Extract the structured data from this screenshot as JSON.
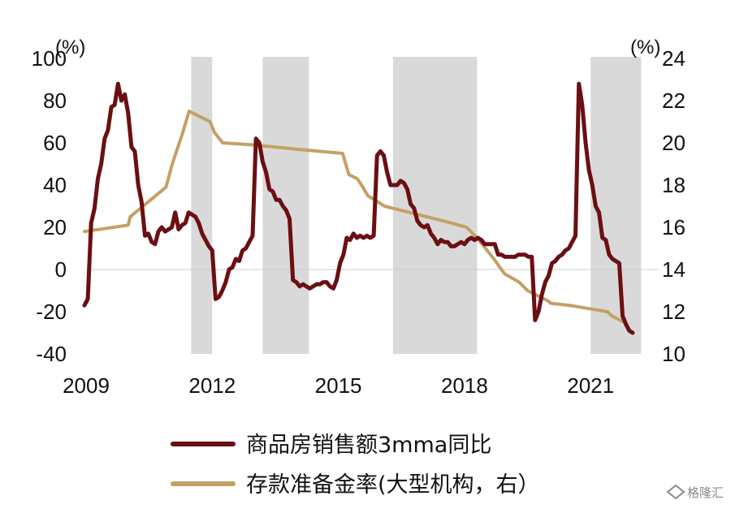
{
  "chart_data": {
    "type": "line",
    "left_axis": {
      "unit": "(%)",
      "ylim": [
        -40,
        100
      ],
      "ticks": [
        -40,
        -20,
        0,
        20,
        40,
        60,
        80,
        100
      ]
    },
    "right_axis": {
      "unit": "(%)",
      "ylim": [
        10,
        24
      ],
      "ticks": [
        10,
        12,
        14,
        16,
        18,
        20,
        22,
        24
      ]
    },
    "x_axis": {
      "ticks": [
        2009,
        2012,
        2015,
        2018,
        2021
      ],
      "xlim": [
        2009.0,
        2022.6
      ]
    },
    "shaded_periods": [
      [
        2011.5,
        2012.0
      ],
      [
        2013.2,
        2014.3
      ],
      [
        2016.3,
        2018.3
      ],
      [
        2021.0,
        2022.2
      ]
    ],
    "series": [
      {
        "name": "商品房销售额3mma同比",
        "axis": "left",
        "color": "#6b0f12",
        "points": [
          [
            2008.96,
            -17
          ],
          [
            2009.04,
            -14
          ],
          [
            2009.12,
            22
          ],
          [
            2009.2,
            29
          ],
          [
            2009.28,
            43
          ],
          [
            2009.36,
            50
          ],
          [
            2009.44,
            62
          ],
          [
            2009.52,
            66
          ],
          [
            2009.6,
            77
          ],
          [
            2009.68,
            78
          ],
          [
            2009.76,
            88
          ],
          [
            2009.84,
            80
          ],
          [
            2009.92,
            83
          ],
          [
            2010.0,
            74
          ],
          [
            2010.08,
            58
          ],
          [
            2010.16,
            56
          ],
          [
            2010.24,
            40
          ],
          [
            2010.32,
            32
          ],
          [
            2010.4,
            16
          ],
          [
            2010.48,
            17
          ],
          [
            2010.56,
            13
          ],
          [
            2010.64,
            12
          ],
          [
            2010.72,
            18
          ],
          [
            2010.8,
            20
          ],
          [
            2010.88,
            18
          ],
          [
            2010.96,
            19
          ],
          [
            2011.04,
            20
          ],
          [
            2011.12,
            27
          ],
          [
            2011.2,
            19
          ],
          [
            2011.28,
            21
          ],
          [
            2011.36,
            22
          ],
          [
            2011.44,
            27
          ],
          [
            2011.52,
            26
          ],
          [
            2011.6,
            25
          ],
          [
            2011.68,
            22
          ],
          [
            2011.76,
            17
          ],
          [
            2011.84,
            14
          ],
          [
            2011.92,
            11
          ],
          [
            2012.0,
            9
          ],
          [
            2012.08,
            -14
          ],
          [
            2012.16,
            -13
          ],
          [
            2012.24,
            -10
          ],
          [
            2012.32,
            -6
          ],
          [
            2012.4,
            0
          ],
          [
            2012.48,
            1
          ],
          [
            2012.56,
            5
          ],
          [
            2012.64,
            4
          ],
          [
            2012.72,
            9
          ],
          [
            2012.8,
            10
          ],
          [
            2012.88,
            13
          ],
          [
            2012.96,
            16
          ],
          [
            2013.04,
            62
          ],
          [
            2013.12,
            60
          ],
          [
            2013.2,
            51
          ],
          [
            2013.28,
            46
          ],
          [
            2013.36,
            38
          ],
          [
            2013.44,
            37
          ],
          [
            2013.52,
            33
          ],
          [
            2013.6,
            33
          ],
          [
            2013.68,
            30
          ],
          [
            2013.76,
            28
          ],
          [
            2013.84,
            24
          ],
          [
            2013.92,
            -5
          ],
          [
            2014.0,
            -6
          ],
          [
            2014.08,
            -8
          ],
          [
            2014.16,
            -7
          ],
          [
            2014.24,
            -8
          ],
          [
            2014.32,
            -9
          ],
          [
            2014.4,
            -8
          ],
          [
            2014.48,
            -7
          ],
          [
            2014.56,
            -7
          ],
          [
            2014.64,
            -6
          ],
          [
            2014.72,
            -6
          ],
          [
            2014.8,
            -8
          ],
          [
            2014.88,
            -9
          ],
          [
            2014.96,
            -5
          ],
          [
            2015.04,
            3
          ],
          [
            2015.12,
            7
          ],
          [
            2015.2,
            15
          ],
          [
            2015.28,
            14
          ],
          [
            2015.36,
            17
          ],
          [
            2015.44,
            15
          ],
          [
            2015.52,
            16
          ],
          [
            2015.6,
            15
          ],
          [
            2015.68,
            16
          ],
          [
            2015.76,
            15
          ],
          [
            2015.84,
            16
          ],
          [
            2015.92,
            54
          ],
          [
            2016.0,
            56
          ],
          [
            2016.08,
            54
          ],
          [
            2016.16,
            46
          ],
          [
            2016.24,
            40
          ],
          [
            2016.32,
            40
          ],
          [
            2016.4,
            40
          ],
          [
            2016.48,
            42
          ],
          [
            2016.56,
            41
          ],
          [
            2016.64,
            38
          ],
          [
            2016.72,
            31
          ],
          [
            2016.8,
            29
          ],
          [
            2016.88,
            23
          ],
          [
            2016.96,
            21
          ],
          [
            2017.04,
            20
          ],
          [
            2017.12,
            21
          ],
          [
            2017.2,
            17
          ],
          [
            2017.28,
            15
          ],
          [
            2017.36,
            12
          ],
          [
            2017.44,
            14
          ],
          [
            2017.52,
            13
          ],
          [
            2017.6,
            13
          ],
          [
            2017.68,
            11
          ],
          [
            2017.76,
            11
          ],
          [
            2017.84,
            12
          ],
          [
            2017.92,
            13
          ],
          [
            2018.0,
            12
          ],
          [
            2018.08,
            14
          ],
          [
            2018.16,
            15
          ],
          [
            2018.24,
            14
          ],
          [
            2018.32,
            15
          ],
          [
            2018.4,
            14
          ],
          [
            2018.48,
            12
          ],
          [
            2018.56,
            12
          ],
          [
            2018.64,
            12
          ],
          [
            2018.72,
            12
          ],
          [
            2018.8,
            7
          ],
          [
            2018.88,
            7
          ],
          [
            2018.96,
            6
          ],
          [
            2019.04,
            6
          ],
          [
            2019.12,
            6
          ],
          [
            2019.2,
            6
          ],
          [
            2019.28,
            7
          ],
          [
            2019.36,
            7
          ],
          [
            2019.44,
            7
          ],
          [
            2019.52,
            6
          ],
          [
            2019.6,
            6
          ],
          [
            2019.68,
            -24
          ],
          [
            2019.76,
            -20
          ],
          [
            2019.84,
            -12
          ],
          [
            2019.92,
            -6
          ],
          [
            2020.0,
            -3
          ],
          [
            2020.08,
            3
          ],
          [
            2020.16,
            4
          ],
          [
            2020.24,
            6
          ],
          [
            2020.32,
            7
          ],
          [
            2020.4,
            9
          ],
          [
            2020.48,
            10
          ],
          [
            2020.56,
            13
          ],
          [
            2020.64,
            16
          ],
          [
            2020.72,
            88
          ],
          [
            2020.8,
            78
          ],
          [
            2020.88,
            60
          ],
          [
            2020.96,
            47
          ],
          [
            2021.04,
            40
          ],
          [
            2021.12,
            30
          ],
          [
            2021.2,
            27
          ],
          [
            2021.28,
            15
          ],
          [
            2021.36,
            14
          ],
          [
            2021.44,
            7
          ],
          [
            2021.52,
            5
          ],
          [
            2021.6,
            4
          ],
          [
            2021.68,
            3
          ],
          [
            2021.76,
            -22
          ],
          [
            2021.84,
            -26
          ],
          [
            2021.92,
            -29
          ],
          [
            2022.0,
            -30
          ]
        ]
      },
      {
        "name": "存款准备金率(大型机构，右）",
        "axis": "right",
        "color": "#c4a066",
        "points": [
          [
            2008.96,
            15.8
          ],
          [
            2010.0,
            16.1
          ],
          [
            2010.05,
            16.5
          ],
          [
            2010.9,
            17.9
          ],
          [
            2011.05,
            19.0
          ],
          [
            2011.3,
            20.5
          ],
          [
            2011.45,
            21.5
          ],
          [
            2011.95,
            21.0
          ],
          [
            2012.05,
            20.5
          ],
          [
            2012.25,
            20.0
          ],
          [
            2013.0,
            19.9
          ],
          [
            2014.0,
            19.7
          ],
          [
            2015.1,
            19.5
          ],
          [
            2015.25,
            18.5
          ],
          [
            2015.45,
            18.3
          ],
          [
            2015.55,
            18.0
          ],
          [
            2015.7,
            17.5
          ],
          [
            2016.1,
            17.0
          ],
          [
            2016.5,
            16.8
          ],
          [
            2017.5,
            16.3
          ],
          [
            2018.05,
            16.0
          ],
          [
            2018.3,
            15.5
          ],
          [
            2018.7,
            14.5
          ],
          [
            2018.95,
            13.8
          ],
          [
            2019.3,
            13.4
          ],
          [
            2019.5,
            13.0
          ],
          [
            2020.0,
            12.5
          ],
          [
            2020.05,
            12.4
          ],
          [
            2020.5,
            12.3
          ],
          [
            2021.4,
            12.0
          ],
          [
            2021.5,
            11.8
          ],
          [
            2021.8,
            11.5
          ]
        ]
      }
    ],
    "legend": {
      "placement": "bottom-center"
    }
  },
  "watermark": {
    "text": "格隆汇"
  }
}
